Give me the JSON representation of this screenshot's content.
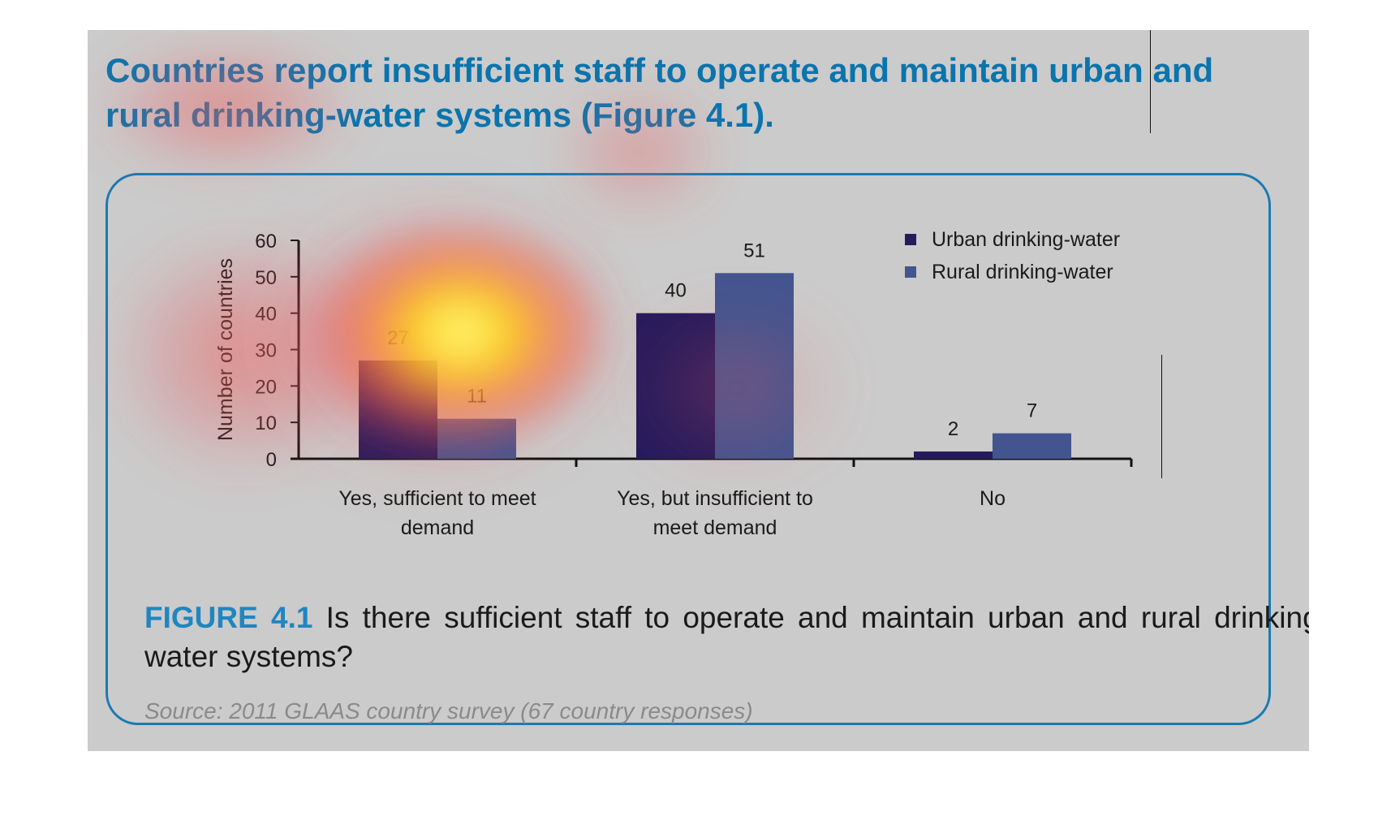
{
  "headline": "Countries report insufficient staff to operate and maintain urban and rural drinking-water systems (Figure 4.1).",
  "caption": {
    "label": "FIGURE 4.1",
    "text": " Is there sufficient staff to operate and maintain urban and rural drinking-water systems?"
  },
  "source": "Source: 2011 GLAAS country survey (67 country responses)",
  "colors": {
    "urban": "#251b5c",
    "rural": "#43558f",
    "accent": "#1a7ab2",
    "panel": "#cbcbcb"
  },
  "chart_data": {
    "type": "bar",
    "title": "",
    "xlabel": "",
    "ylabel": "Number of countries",
    "ylim": [
      0,
      60
    ],
    "yticks": [
      "0",
      "10",
      "20",
      "30",
      "40",
      "50",
      "60"
    ],
    "categories": [
      [
        "Yes, sufficient to meet",
        "demand"
      ],
      [
        "Yes, but insufficient to",
        "meet demand"
      ],
      [
        "No"
      ]
    ],
    "series": [
      {
        "name": "Urban drinking-water",
        "values": [
          27,
          40,
          2
        ]
      },
      {
        "name": "Rural drinking-water",
        "values": [
          11,
          51,
          7
        ]
      }
    ],
    "legend_position": "top-right",
    "grid": false,
    "heatmap_overlay": true
  }
}
